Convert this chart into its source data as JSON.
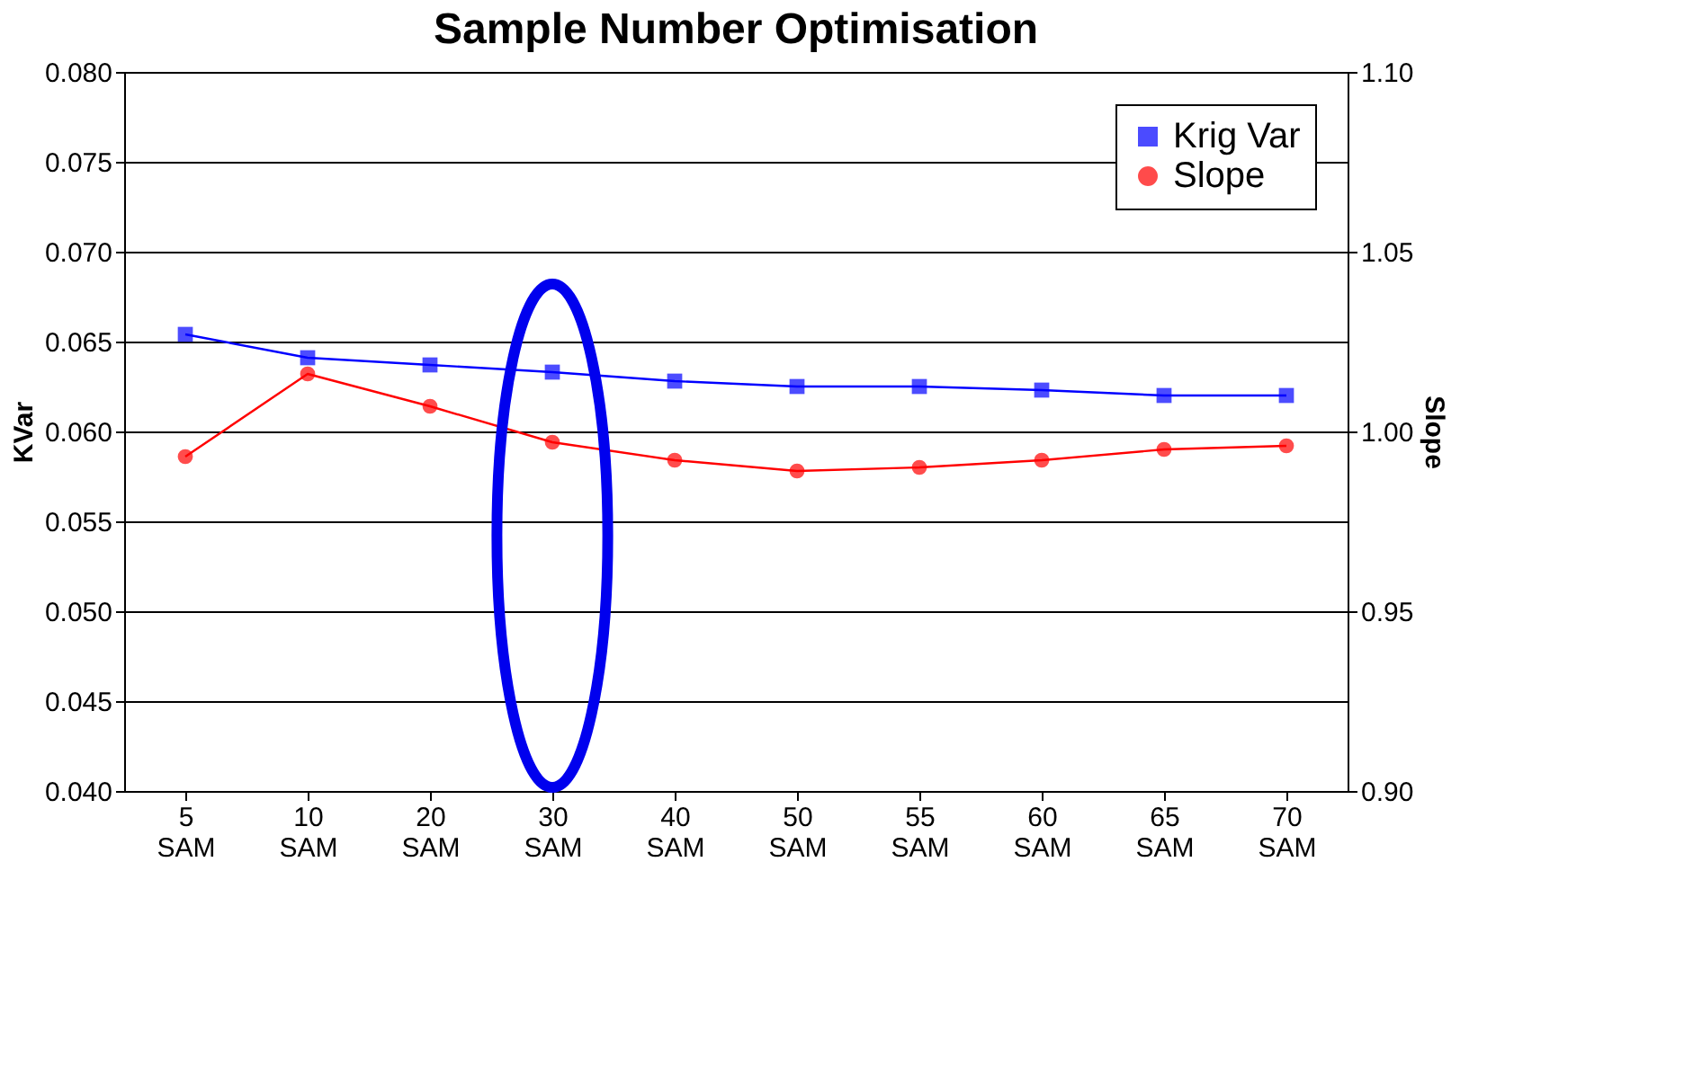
{
  "chart_data": {
    "type": "line",
    "title": "Sample Number Optimisation",
    "ylabel": "KVar",
    "y2label": "Slope",
    "categories": [
      "5 SAM",
      "10 SAM",
      "20 SAM",
      "30 SAM",
      "40 SAM",
      "50 SAM",
      "55 SAM",
      "60 SAM",
      "65 SAM",
      "70 SAM"
    ],
    "series": [
      {
        "name": "Krig Var",
        "color": "#0000ff",
        "marker": "square",
        "values": [
          0.0654,
          0.0641,
          0.0637,
          0.0633,
          0.0628,
          0.0625,
          0.0625,
          0.0623,
          0.062,
          0.062
        ]
      },
      {
        "name": "Slope",
        "color": "#ff0000",
        "marker": "circle",
        "axis": "y2",
        "values": [
          0.993,
          1.016,
          1.007,
          0.997,
          0.992,
          0.989,
          0.99,
          0.992,
          0.995,
          0.996
        ]
      }
    ],
    "ylim": [
      0.04,
      0.08
    ],
    "yticks": [
      {
        "value": 0.04,
        "label": "0.040"
      },
      {
        "value": 0.045,
        "label": "0.045"
      },
      {
        "value": 0.05,
        "label": "0.050"
      },
      {
        "value": 0.055,
        "label": "0.055"
      },
      {
        "value": 0.06,
        "label": "0.060"
      },
      {
        "value": 0.065,
        "label": "0.065"
      },
      {
        "value": 0.07,
        "label": "0.070"
      },
      {
        "value": 0.075,
        "label": "0.075"
      },
      {
        "value": 0.08,
        "label": "0.080"
      }
    ],
    "y2lim": [
      0.9,
      1.1
    ],
    "y2ticks": [
      {
        "value": 0.9,
        "label": "0.90"
      },
      {
        "value": 0.95,
        "label": "0.95"
      },
      {
        "value": 1.0,
        "label": "1.00"
      },
      {
        "value": 1.05,
        "label": "1.05"
      },
      {
        "value": 1.1,
        "label": "1.10"
      }
    ],
    "grid": "y",
    "legend": "top right",
    "line_style": "solid"
  }
}
